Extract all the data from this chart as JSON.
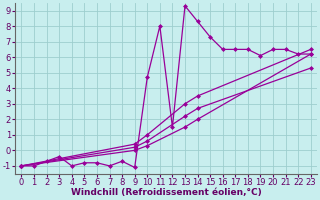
{
  "title": "",
  "xlabel": "Windchill (Refroidissement éolien,°C)",
  "ylabel": "",
  "bg_color": "#c8eeee",
  "line_color": "#990099",
  "marker": "D",
  "markersize": 2.0,
  "linewidth": 0.9,
  "xlim": [
    -0.5,
    23.5
  ],
  "ylim": [
    -1.5,
    9.5
  ],
  "xticks": [
    0,
    1,
    2,
    3,
    4,
    5,
    6,
    7,
    8,
    9,
    10,
    11,
    12,
    13,
    14,
    15,
    16,
    17,
    18,
    19,
    20,
    21,
    22,
    23
  ],
  "yticks": [
    -1,
    0,
    1,
    2,
    3,
    4,
    5,
    6,
    7,
    8,
    9
  ],
  "grid_color": "#9ecece",
  "series1": [
    [
      0,
      -1.0
    ],
    [
      1,
      -1.0
    ],
    [
      2,
      -0.7
    ],
    [
      3,
      -0.4
    ],
    [
      4,
      -1.0
    ],
    [
      5,
      -0.8
    ],
    [
      6,
      -0.8
    ],
    [
      7,
      -1.0
    ],
    [
      8,
      -0.7
    ],
    [
      9,
      -1.1
    ],
    [
      10,
      4.7
    ],
    [
      11,
      8.0
    ],
    [
      12,
      1.5
    ],
    [
      13,
      9.3
    ],
    [
      14,
      8.3
    ],
    [
      15,
      7.3
    ],
    [
      16,
      6.5
    ],
    [
      17,
      6.5
    ],
    [
      18,
      6.5
    ],
    [
      19,
      6.1
    ],
    [
      20,
      6.5
    ],
    [
      21,
      6.5
    ],
    [
      22,
      6.2
    ],
    [
      23,
      6.2
    ]
  ],
  "series2": [
    [
      0,
      -1.0
    ],
    [
      9,
      0.0
    ],
    [
      10,
      0.3
    ],
    [
      13,
      1.5
    ],
    [
      14,
      2.0
    ],
    [
      23,
      6.2
    ]
  ],
  "series3": [
    [
      0,
      -1.0
    ],
    [
      9,
      0.2
    ],
    [
      10,
      0.6
    ],
    [
      13,
      2.2
    ],
    [
      14,
      2.7
    ],
    [
      23,
      5.3
    ]
  ],
  "series4": [
    [
      0,
      -1.0
    ],
    [
      9,
      0.4
    ],
    [
      10,
      1.0
    ],
    [
      13,
      3.0
    ],
    [
      14,
      3.5
    ],
    [
      23,
      6.5
    ]
  ],
  "xlabel_fontsize": 6.5,
  "tick_fontsize": 6.0,
  "font_color": "#660066"
}
